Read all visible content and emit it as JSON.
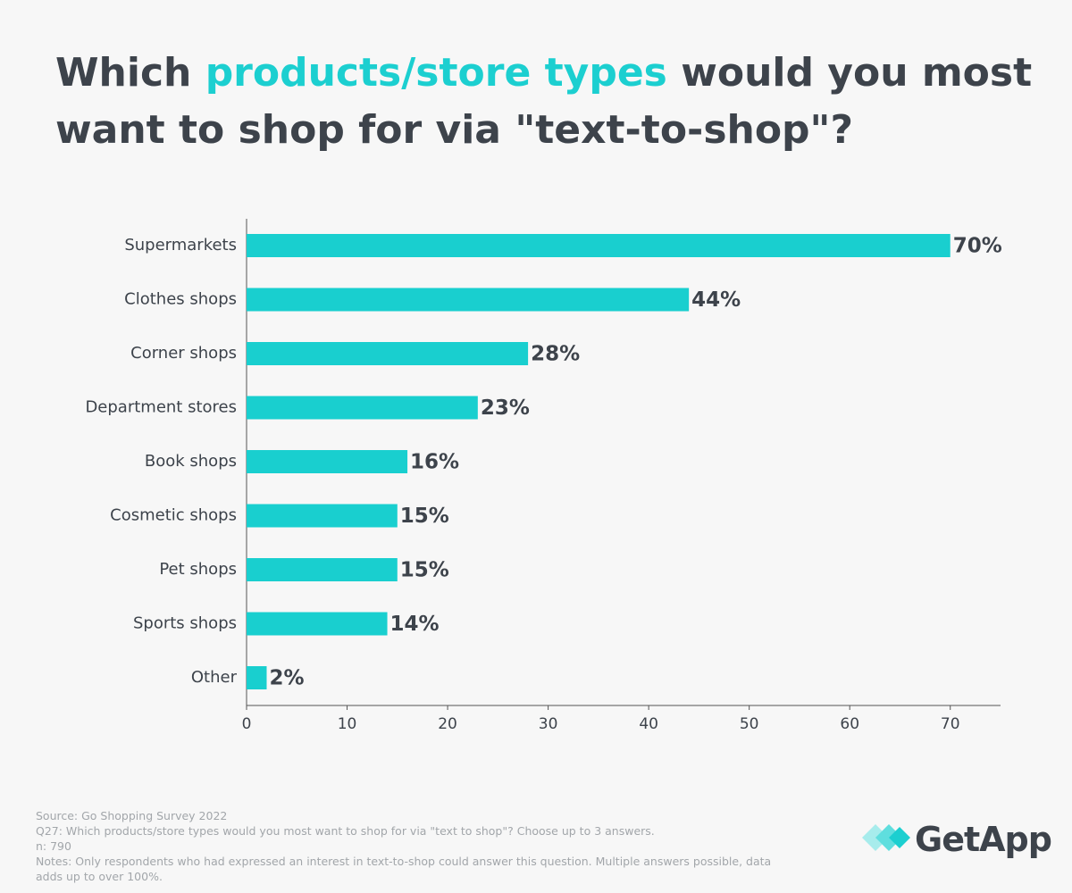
{
  "chart_data": {
    "type": "hbar",
    "title_parts": [
      "Which",
      "products/store types",
      "would you most want to shop for via \"text-to-shop\"?"
    ],
    "title_highlight_color": "#1ccfd0",
    "categories": [
      "Supermarkets",
      "Clothes shops",
      "Corner shops",
      "Department stores",
      "Book shops",
      "Cosmetic shops",
      "Pet shops",
      "Sports shops",
      "Other"
    ],
    "values": [
      70,
      44,
      28,
      23,
      16,
      15,
      15,
      14,
      2
    ],
    "value_labels": [
      "70%",
      "44%",
      "28%",
      "23%",
      "16%",
      "15%",
      "15%",
      "14%",
      "2%"
    ],
    "color": "#19cfcf",
    "xlim": [
      0,
      75
    ],
    "xticks": [
      0,
      10,
      20,
      30,
      40,
      50,
      60,
      70
    ],
    "grid": false
  },
  "footnotes": {
    "source": "Source: Go Shopping Survey 2022",
    "question": "Q27: Which products/store types would you most want to shop for via \"text to shop\"? Choose up to 3 answers.",
    "n": "n: 790",
    "notes": "Notes: Only respondents who had expressed an interest in text-to-shop could answer this question. Multiple answers possible, data adds up to over 100%."
  },
  "logo": "GetApp"
}
